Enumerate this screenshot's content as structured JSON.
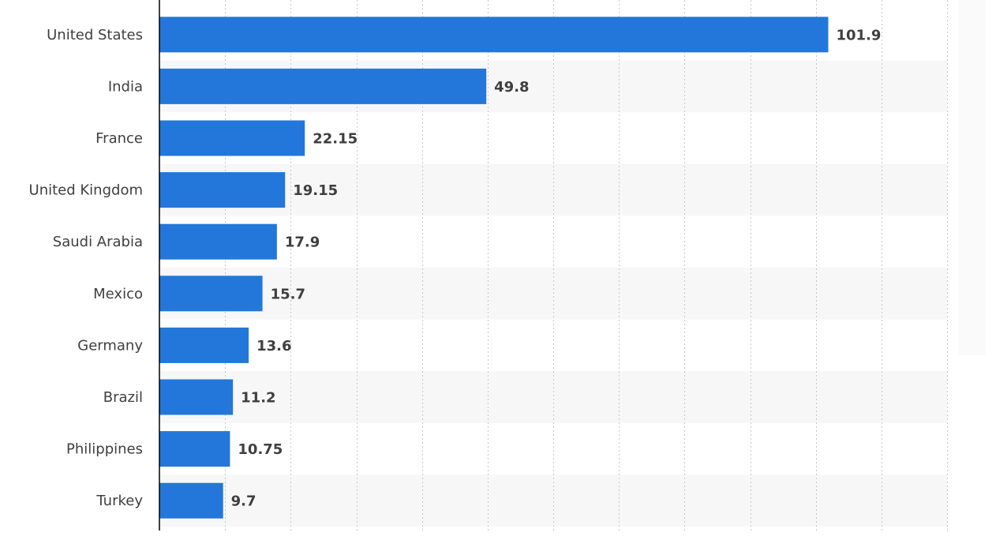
{
  "chart_data": {
    "type": "bar",
    "orientation": "horizontal",
    "categories": [
      "United States",
      "India",
      "France",
      "United Kingdom",
      "Saudi Arabia",
      "Mexico",
      "Germany",
      "Brazil",
      "Philippines",
      "Turkey"
    ],
    "series": [
      {
        "values": [
          101.9,
          49.8,
          22.15,
          19.15,
          17.9,
          15.7,
          13.6,
          11.2,
          10.75,
          9.7
        ],
        "value_labels": [
          "101.9",
          "49.8",
          "22.15",
          "19.15",
          "17.9",
          "15.7",
          "13.6",
          "11.2",
          "10.75",
          "9.7"
        ]
      }
    ],
    "xlim": [
      0,
      120
    ],
    "grid_step": 10,
    "grid": true,
    "legend": "none",
    "bar_color": "#2377da",
    "band_color": "#f7f7f7",
    "axis_color": "#000000"
  }
}
